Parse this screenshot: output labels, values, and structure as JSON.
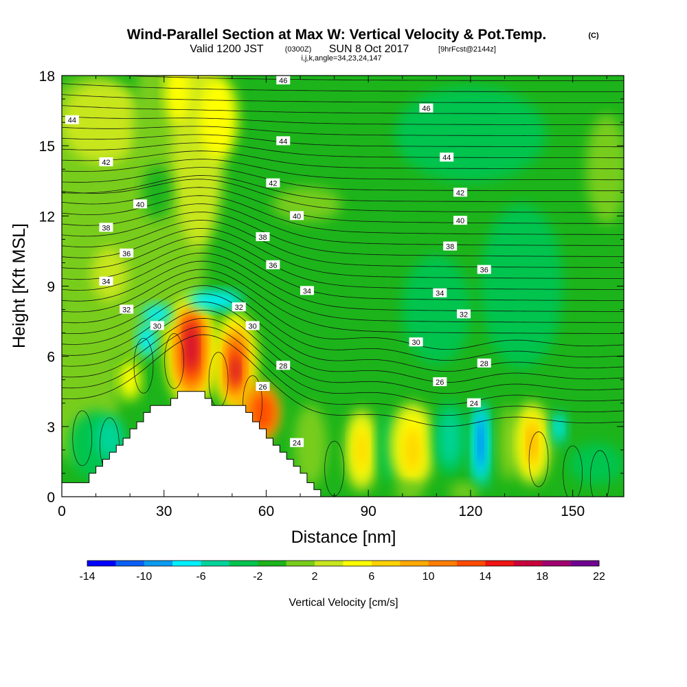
{
  "chart_data": {
    "type": "heatmap",
    "title": {
      "main": "Wind-Parallel Section at Max W: Vertical Velocity & Pot.Temp.",
      "copyright": "(C)"
    },
    "subtitle": {
      "valid": "Valid 1200 JST",
      "utc": "(0300Z)",
      "date": "SUN 8 Oct 2017",
      "forecast": "[9hrFcst@2144z]",
      "indices": "i,j,k,angle=34,23,24,147"
    },
    "xlabel": "Distance [nm]",
    "ylabel": "Height [Kft MSL]",
    "xlim": [
      0,
      165
    ],
    "ylim": [
      0,
      18
    ],
    "xticks": [
      0,
      30,
      60,
      90,
      120,
      150
    ],
    "yticks": [
      0,
      3,
      6,
      9,
      12,
      15,
      18
    ],
    "colorbar": {
      "label": "Vertical Velocity [cm/s]",
      "levels": [
        -14,
        -12,
        -10,
        -8,
        -6,
        -4,
        -2,
        0,
        2,
        4,
        6,
        8,
        10,
        12,
        14,
        16,
        18,
        20,
        22
      ],
      "tick_labels": [
        "-14",
        "-10",
        "-6",
        "-2",
        "2",
        "6",
        "10",
        "14",
        "18",
        "22"
      ],
      "colors": [
        "#0000ff",
        "#0a5ff5",
        "#0a9bf0",
        "#00f0ff",
        "#00d49a",
        "#00c44e",
        "#1cb41a",
        "#78cd1a",
        "#c8e61e",
        "#ffff00",
        "#ffd200",
        "#ffaa00",
        "#ff7d00",
        "#ff4b00",
        "#f01414",
        "#c8003c",
        "#a0006e",
        "#700090"
      ]
    },
    "theta_contour_labels": [
      {
        "value": 46,
        "x": 65,
        "y": 17.8
      },
      {
        "value": 46,
        "x": 107,
        "y": 16.6
      },
      {
        "value": 44,
        "x": 3,
        "y": 16.1
      },
      {
        "value": 44,
        "x": 65,
        "y": 15.2
      },
      {
        "value": 44,
        "x": 113,
        "y": 14.5
      },
      {
        "value": 42,
        "x": 13,
        "y": 14.3
      },
      {
        "value": 42,
        "x": 62,
        "y": 13.4
      },
      {
        "value": 42,
        "x": 117,
        "y": 13.0
      },
      {
        "value": 40,
        "x": 23,
        "y": 12.5
      },
      {
        "value": 40,
        "x": 69,
        "y": 12.0
      },
      {
        "value": 40,
        "x": 117,
        "y": 11.8
      },
      {
        "value": 38,
        "x": 13,
        "y": 11.5
      },
      {
        "value": 38,
        "x": 59,
        "y": 11.1
      },
      {
        "value": 38,
        "x": 114,
        "y": 10.7
      },
      {
        "value": 36,
        "x": 19,
        "y": 10.4
      },
      {
        "value": 36,
        "x": 62,
        "y": 9.9
      },
      {
        "value": 36,
        "x": 124,
        "y": 9.7
      },
      {
        "value": 34,
        "x": 13,
        "y": 9.2
      },
      {
        "value": 34,
        "x": 72,
        "y": 8.8
      },
      {
        "value": 34,
        "x": 111,
        "y": 8.7
      },
      {
        "value": 32,
        "x": 19,
        "y": 8.0
      },
      {
        "value": 32,
        "x": 52,
        "y": 8.1
      },
      {
        "value": 32,
        "x": 118,
        "y": 7.8
      },
      {
        "value": 30,
        "x": 28,
        "y": 7.3
      },
      {
        "value": 30,
        "x": 56,
        "y": 7.3
      },
      {
        "value": 30,
        "x": 104,
        "y": 6.6
      },
      {
        "value": 28,
        "x": 65,
        "y": 5.6
      },
      {
        "value": 28,
        "x": 124,
        "y": 5.7
      },
      {
        "value": 26,
        "x": 59,
        "y": 4.7
      },
      {
        "value": 26,
        "x": 111,
        "y": 4.9
      },
      {
        "value": 24,
        "x": 69,
        "y": 2.3
      },
      {
        "value": 24,
        "x": 121,
        "y": 4.0
      }
    ]
  }
}
